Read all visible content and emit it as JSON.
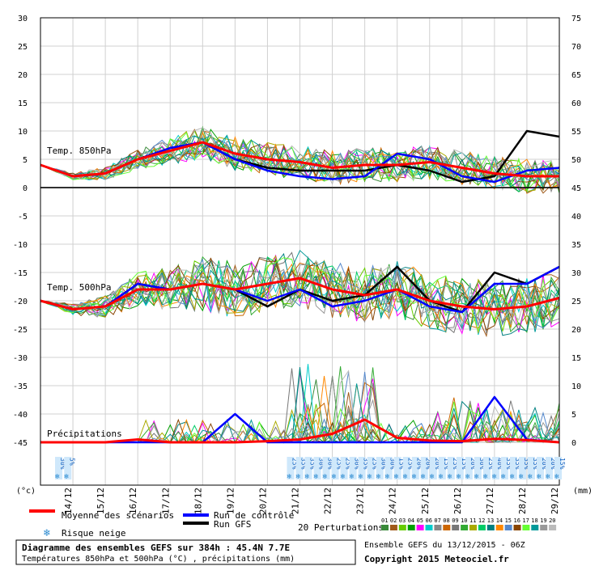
{
  "chart_data": [
    {
      "type": "line",
      "title": "Temp. 850hPa",
      "ylabel_left": "(°c)",
      "y_left_ticks": [
        30,
        25,
        20,
        15,
        10,
        5,
        0,
        -5,
        -10,
        -15,
        -20,
        -25,
        -30,
        -35,
        -40,
        -45
      ],
      "x_date_labels": [
        "14/12",
        "15/12",
        "16/12",
        "17/12",
        "18/12",
        "19/12",
        "20/12",
        "21/12",
        "22/12",
        "23/12",
        "24/12",
        "25/12",
        "26/12",
        "27/12",
        "28/12",
        "29/12"
      ],
      "x_days": [
        0,
        1,
        2,
        3,
        4,
        5,
        6,
        7,
        8,
        9,
        10,
        11,
        12,
        13,
        14,
        15,
        16
      ],
      "series": [
        {
          "name": "Moyenne des scénarios",
          "color": "#ff0000",
          "values": [
            4,
            2,
            2.5,
            5,
            6.5,
            8,
            6,
            5,
            4.5,
            3.5,
            4,
            4,
            4.5,
            3.5,
            2.5,
            2,
            2
          ]
        },
        {
          "name": "Run de contrôle",
          "color": "#0000ff",
          "values": [
            4,
            2,
            2.5,
            5,
            7,
            8,
            5,
            3,
            2,
            1.5,
            2,
            6,
            5,
            2,
            1,
            3,
            3.5
          ]
        },
        {
          "name": "Run GFS",
          "color": "#000000",
          "values": [
            4,
            2,
            2.5,
            5,
            7,
            8,
            5,
            3.5,
            3,
            3,
            3,
            4,
            3,
            1,
            2,
            10,
            9
          ]
        }
      ]
    },
    {
      "type": "line",
      "title": "Temp. 500hPa",
      "series": [
        {
          "name": "Moyenne des scénarios",
          "color": "#ff0000",
          "values": [
            -20,
            -21.5,
            -21,
            -18,
            -18,
            -17,
            -18,
            -17,
            -16,
            -18,
            -19,
            -18,
            -20,
            -21,
            -21.5,
            -21,
            -19.5
          ]
        },
        {
          "name": "Run de contrôle",
          "color": "#0000ff",
          "values": [
            -20,
            -21.5,
            -21,
            -17,
            -18,
            -17,
            -18,
            -20,
            -18,
            -21,
            -20,
            -18,
            -21,
            -22,
            -17,
            -17,
            -14
          ]
        },
        {
          "name": "Run GFS",
          "color": "#000000",
          "values": [
            -20,
            -21.5,
            -21,
            -17,
            -18,
            -17,
            -18,
            -21,
            -18,
            -20,
            -19,
            -14,
            -20,
            -22,
            -15,
            -17,
            -14
          ]
        }
      ]
    },
    {
      "type": "line",
      "title": "Précipitations",
      "ylabel_right": "(mm)",
      "y_right_ticks": [
        75,
        70,
        65,
        60,
        55,
        50,
        45,
        40,
        35,
        30,
        25,
        20,
        15,
        10,
        5,
        0
      ],
      "series": [
        {
          "name": "Moyenne des scénarios",
          "color": "#ff0000",
          "values": [
            0,
            0,
            0,
            0.5,
            0,
            0,
            0,
            0.2,
            0.5,
            1.5,
            4,
            0.8,
            0.3,
            0.2,
            0.6,
            0.4,
            0
          ]
        },
        {
          "name": "Run de contrôle",
          "color": "#0000ff",
          "values": [
            0,
            0,
            0,
            0,
            0,
            0,
            5,
            0,
            0,
            0,
            0,
            0,
            0,
            0,
            8,
            0.5,
            0
          ]
        }
      ]
    }
  ],
  "snow_risk": {
    "first_labels": [
      "30%",
      "5%"
    ],
    "second_labels": [
      "25%",
      "35%",
      "35%",
      "30%",
      "30%",
      "25%",
      "25%",
      "30%",
      "35%",
      "25%",
      "30%",
      "30%",
      "15%",
      "25%",
      "20%",
      "20%",
      "20%",
      "15%",
      "25%",
      "15%",
      "20%",
      "30%",
      "25%",
      "40%",
      "35%",
      "35%",
      "35%",
      "35%",
      "20%",
      "20%",
      "15%"
    ]
  },
  "legend": {
    "mean": "Moyenne des scénarios",
    "control": "Run de contrôle",
    "gfs": "Run GFS",
    "snow": "Risque neige",
    "perturbations": "20 Perturbations",
    "pert_numbers": [
      "01",
      "02",
      "03",
      "04",
      "05",
      "06",
      "07",
      "08",
      "09",
      "10",
      "11",
      "12",
      "13",
      "14",
      "15",
      "16",
      "17",
      "18",
      "19",
      "20"
    ],
    "pert_colors": [
      "#3a8a3a",
      "#a05a1a",
      "#66cc00",
      "#00a000",
      "#ff00ff",
      "#00cccc",
      "#888888",
      "#cc6600",
      "#777777",
      "#33aa33",
      "#aaaa00",
      "#00cc66",
      "#008080",
      "#ff8800",
      "#5588cc",
      "#884400",
      "#66ff33",
      "#009999",
      "#999999",
      "#bbbbbb"
    ]
  },
  "footer": {
    "title": "Diagramme des ensembles GEFS sur 384h : 45.4N 7.7E",
    "subtitle": "Températures 850hPa et 500hPa (°C) , précipitations (mm)",
    "ensemble": "Ensemble GEFS du 13/12/2015 - 06Z",
    "copyright": "Copyright 2015 Meteociel.fr"
  }
}
